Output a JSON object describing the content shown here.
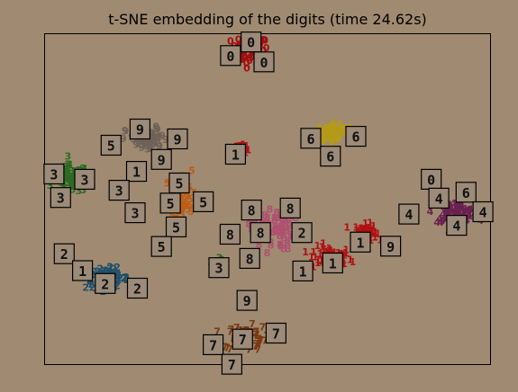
{
  "chart_data": {
    "type": "scatter",
    "title": "t-SNE embedding of the digits (time 24.62s)",
    "xlabel": "",
    "ylabel": "",
    "xlim": [
      0,
      1
    ],
    "ylim": [
      0,
      1
    ],
    "grid": false,
    "axis_ticks": false,
    "colors": {
      "background": "#a08a72",
      "axes_border": "#000000",
      "thumbnail_fill": "#9c8b78",
      "thumbnail_border": "#000000"
    },
    "clusters": [
      {
        "digit": "0",
        "color": "#a30f0f",
        "center": [
          0.46,
          0.95
        ],
        "spread": [
          0.035,
          0.035
        ]
      },
      {
        "digit": "1",
        "color": "#b01212",
        "center": [
          0.64,
          0.32
        ],
        "spread": [
          0.04,
          0.03
        ]
      },
      {
        "digit": "1",
        "color": "#b01212",
        "center": [
          0.72,
          0.4
        ],
        "spread": [
          0.02,
          0.02
        ]
      },
      {
        "digit": "1",
        "color": "#b01212",
        "center": [
          0.44,
          0.65
        ],
        "spread": [
          0.01,
          0.01
        ]
      },
      {
        "digit": "2",
        "color": "#21506b",
        "center": [
          0.14,
          0.26
        ],
        "spread": [
          0.04,
          0.025
        ]
      },
      {
        "digit": "3",
        "color": "#2e6b22",
        "center": [
          0.06,
          0.56
        ],
        "spread": [
          0.03,
          0.035
        ]
      },
      {
        "digit": "3",
        "color": "#2e6b22",
        "center": [
          0.39,
          0.3
        ],
        "spread": [
          0.01,
          0.015
        ]
      },
      {
        "digit": "4",
        "color": "#6b2250",
        "center": [
          0.92,
          0.46
        ],
        "spread": [
          0.04,
          0.025
        ]
      },
      {
        "digit": "5",
        "color": "#c05c10",
        "center": [
          0.3,
          0.5
        ],
        "spread": [
          0.025,
          0.07
        ]
      },
      {
        "digit": "6",
        "color": "#b59a1a",
        "center": [
          0.65,
          0.7
        ],
        "spread": [
          0.035,
          0.025
        ]
      },
      {
        "digit": "7",
        "color": "#7a3a12",
        "center": [
          0.45,
          0.08
        ],
        "spread": [
          0.04,
          0.03
        ]
      },
      {
        "digit": "8",
        "color": "#b05070",
        "center": [
          0.51,
          0.41
        ],
        "spread": [
          0.04,
          0.055
        ]
      },
      {
        "digit": "9",
        "color": "#6e6258",
        "center": [
          0.23,
          0.68
        ],
        "spread": [
          0.04,
          0.03
        ]
      }
    ],
    "thumbnails": [
      {
        "label": "0",
        "x": 0.463,
        "y": 0.975
      },
      {
        "label": "0",
        "x": 0.417,
        "y": 0.934
      },
      {
        "label": "0",
        "x": 0.492,
        "y": 0.915
      },
      {
        "label": "6",
        "x": 0.597,
        "y": 0.684
      },
      {
        "label": "6",
        "x": 0.698,
        "y": 0.69
      },
      {
        "label": "6",
        "x": 0.641,
        "y": 0.63
      },
      {
        "label": "1",
        "x": 0.428,
        "y": 0.636
      },
      {
        "label": "9",
        "x": 0.214,
        "y": 0.712
      },
      {
        "label": "9",
        "x": 0.298,
        "y": 0.682
      },
      {
        "label": "9",
        "x": 0.262,
        "y": 0.62
      },
      {
        "label": "5",
        "x": 0.149,
        "y": 0.663
      },
      {
        "label": "1",
        "x": 0.206,
        "y": 0.584
      },
      {
        "label": "3",
        "x": 0.021,
        "y": 0.576
      },
      {
        "label": "3",
        "x": 0.09,
        "y": 0.56
      },
      {
        "label": "3",
        "x": 0.036,
        "y": 0.505
      },
      {
        "label": "3",
        "x": 0.167,
        "y": 0.527
      },
      {
        "label": "3",
        "x": 0.203,
        "y": 0.459
      },
      {
        "label": "5",
        "x": 0.302,
        "y": 0.549
      },
      {
        "label": "5",
        "x": 0.282,
        "y": 0.488
      },
      {
        "label": "5",
        "x": 0.356,
        "y": 0.492
      },
      {
        "label": "5",
        "x": 0.295,
        "y": 0.416
      },
      {
        "label": "5",
        "x": 0.262,
        "y": 0.357
      },
      {
        "label": "8",
        "x": 0.464,
        "y": 0.467
      },
      {
        "label": "8",
        "x": 0.551,
        "y": 0.473
      },
      {
        "label": "8",
        "x": 0.484,
        "y": 0.399
      },
      {
        "label": "8",
        "x": 0.416,
        "y": 0.394
      },
      {
        "label": "8",
        "x": 0.46,
        "y": 0.321
      },
      {
        "label": "2",
        "x": 0.577,
        "y": 0.399
      },
      {
        "label": "1",
        "x": 0.646,
        "y": 0.307
      },
      {
        "label": "1",
        "x": 0.579,
        "y": 0.283
      },
      {
        "label": "1",
        "x": 0.708,
        "y": 0.37
      },
      {
        "label": "9",
        "x": 0.776,
        "y": 0.358
      },
      {
        "label": "3",
        "x": 0.391,
        "y": 0.293
      },
      {
        "label": "0",
        "x": 0.867,
        "y": 0.56
      },
      {
        "label": "6",
        "x": 0.945,
        "y": 0.521
      },
      {
        "label": "4",
        "x": 0.884,
        "y": 0.503
      },
      {
        "label": "4",
        "x": 0.983,
        "y": 0.462
      },
      {
        "label": "4",
        "x": 0.817,
        "y": 0.455
      },
      {
        "label": "4",
        "x": 0.924,
        "y": 0.421
      },
      {
        "label": "2",
        "x": 0.044,
        "y": 0.335
      },
      {
        "label": "1",
        "x": 0.085,
        "y": 0.284
      },
      {
        "label": "2",
        "x": 0.136,
        "y": 0.245
      },
      {
        "label": "2",
        "x": 0.208,
        "y": 0.231
      },
      {
        "label": "9",
        "x": 0.454,
        "y": 0.194
      },
      {
        "label": "7",
        "x": 0.519,
        "y": 0.095
      },
      {
        "label": "7",
        "x": 0.444,
        "y": 0.077
      },
      {
        "label": "7",
        "x": 0.378,
        "y": 0.06
      },
      {
        "label": "7",
        "x": 0.42,
        "y": 0.001
      }
    ]
  }
}
